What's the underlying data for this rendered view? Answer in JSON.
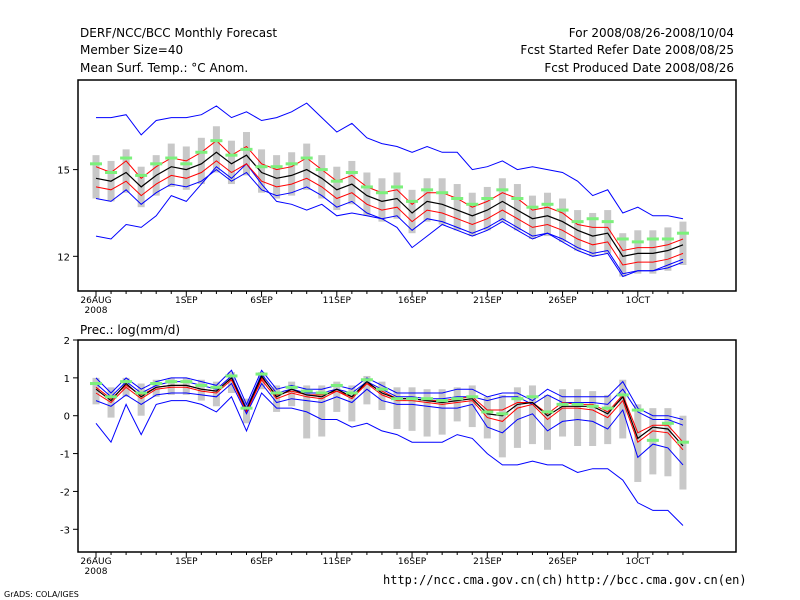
{
  "header": {
    "left_line1": "DERF/NCC/BCC Monthly Forecast",
    "left_line2": "Member Size=40",
    "right_line1": "For 2008/08/26-2008/10/04",
    "right_line2": "Fcst Started Refer Date 2008/08/25",
    "right_line3": "Fcst Produced Date 2008/08/26"
  },
  "footer": {
    "url_ncc": "http://ncc.cma.gov.cn(ch)",
    "url_bcc": "http://bcc.cma.gov.cn(en)",
    "grads": "GrADS: COLA/IGES"
  },
  "colors": {
    "spread": "#c8c8c8",
    "extreme": "#0000ff",
    "mean": "#000000",
    "band": "#ff0000",
    "observed": "#7cf07c"
  },
  "chart_data": [
    {
      "type": "line",
      "title": "Mean Surf. Temp.: °C Anom.",
      "x_labels": [
        "26AUG",
        "1SEP",
        "6SEP",
        "11SEP",
        "16SEP",
        "21SEP",
        "26SEP",
        "1OCT"
      ],
      "x_label_days": [
        0,
        6,
        11,
        16,
        21,
        26,
        31,
        36
      ],
      "x_year": "2008",
      "ylim": [
        10.8,
        18.1
      ],
      "yticks": [
        "15",
        "12"
      ],
      "ytick_values": [
        15,
        12
      ],
      "days": 40,
      "series": [
        {
          "name": "member max",
          "values": [
            12.7,
            12.6,
            13.1,
            13.0,
            13.4,
            14.1,
            13.9,
            14.5,
            15.1,
            14.7,
            15.2,
            14.5,
            13.9,
            13.8,
            13.6,
            13.8,
            13.4,
            13.5,
            13.4,
            13.3,
            13.0,
            12.3,
            12.7,
            13.1,
            12.9,
            12.7,
            12.9,
            13.2,
            12.9,
            12.6,
            12.8,
            12.5,
            12.2,
            12.0,
            12.1,
            11.3,
            11.5,
            11.5,
            11.7,
            11.9
          ]
        },
        {
          "name": "member upper",
          "values": [
            16.8,
            16.8,
            16.9,
            16.2,
            16.7,
            16.8,
            16.8,
            16.9,
            17.2,
            16.8,
            17.0,
            16.7,
            16.8,
            17.0,
            17.3,
            16.8,
            16.3,
            16.6,
            16.1,
            15.9,
            15.8,
            15.6,
            15.8,
            15.6,
            15.6,
            15.0,
            15.1,
            15.3,
            15.0,
            15.1,
            15.0,
            14.9,
            14.6,
            14.1,
            14.3,
            13.5,
            13.7,
            13.4,
            13.4,
            13.3
          ]
        },
        {
          "name": "band upper",
          "values": [
            15.1,
            14.9,
            15.3,
            14.7,
            15.1,
            15.4,
            15.3,
            15.6,
            16.0,
            15.5,
            15.8,
            15.2,
            15.0,
            15.1,
            15.4,
            15.0,
            14.6,
            14.8,
            14.4,
            14.2,
            14.3,
            13.8,
            14.2,
            14.2,
            14.0,
            13.7,
            13.9,
            14.2,
            14.0,
            13.6,
            13.7,
            13.5,
            13.1,
            13.0,
            13.0,
            12.2,
            12.3,
            12.3,
            12.4,
            12.6
          ]
        },
        {
          "name": "ensemble mean",
          "values": [
            14.7,
            14.6,
            14.9,
            14.4,
            14.8,
            15.1,
            15.0,
            15.2,
            15.6,
            15.2,
            15.5,
            14.9,
            14.7,
            14.8,
            15.0,
            14.7,
            14.3,
            14.5,
            14.1,
            13.9,
            14.0,
            13.5,
            13.9,
            13.8,
            13.6,
            13.4,
            13.6,
            13.9,
            13.6,
            13.3,
            13.4,
            13.2,
            12.9,
            12.7,
            12.8,
            12.0,
            12.1,
            12.1,
            12.2,
            12.4
          ]
        },
        {
          "name": "band lower",
          "values": [
            14.4,
            14.3,
            14.6,
            14.1,
            14.5,
            14.8,
            14.7,
            14.9,
            15.3,
            14.9,
            15.2,
            14.6,
            14.4,
            14.5,
            14.7,
            14.4,
            14.0,
            14.2,
            13.8,
            13.6,
            13.7,
            13.2,
            13.6,
            13.5,
            13.3,
            13.1,
            13.3,
            13.6,
            13.3,
            13.0,
            13.1,
            12.9,
            12.6,
            12.4,
            12.5,
            11.7,
            11.8,
            11.8,
            11.9,
            12.1
          ]
        },
        {
          "name": "member min",
          "values": [
            14.0,
            13.9,
            14.3,
            13.8,
            14.2,
            14.5,
            14.4,
            14.6,
            15.0,
            14.6,
            14.9,
            14.3,
            14.1,
            14.2,
            14.4,
            14.1,
            13.7,
            13.9,
            13.5,
            13.3,
            13.4,
            12.9,
            13.3,
            13.2,
            13.0,
            12.8,
            13.0,
            13.3,
            13.0,
            12.7,
            12.8,
            12.6,
            12.3,
            12.1,
            12.2,
            11.4,
            11.5,
            11.5,
            11.6,
            11.8
          ]
        },
        {
          "name": "observed",
          "values": [
            15.2,
            14.9,
            15.4,
            14.8,
            15.2,
            15.4,
            15.2,
            15.6,
            16.0,
            15.5,
            15.7,
            15.1,
            15.1,
            15.2,
            15.4,
            15.0,
            14.6,
            14.9,
            14.4,
            14.2,
            14.4,
            13.9,
            14.3,
            14.2,
            14.0,
            13.8,
            14.0,
            14.3,
            14.0,
            13.7,
            13.8,
            13.6,
            13.2,
            13.3,
            13.2,
            12.6,
            12.5,
            12.6,
            12.6,
            12.8
          ]
        }
      ],
      "spread": {
        "high": [
          15.5,
          15.3,
          15.7,
          15.1,
          15.5,
          15.9,
          15.8,
          16.1,
          16.5,
          16.0,
          16.3,
          15.7,
          15.5,
          15.6,
          15.9,
          15.5,
          15.1,
          15.3,
          14.9,
          14.7,
          14.9,
          14.3,
          14.7,
          14.7,
          14.5,
          14.2,
          14.4,
          14.7,
          14.5,
          14.1,
          14.2,
          14.0,
          13.6,
          13.5,
          13.6,
          12.8,
          12.9,
          12.9,
          13.0,
          13.2
        ],
        "low": [
          14.0,
          13.9,
          14.2,
          13.7,
          14.1,
          14.4,
          14.3,
          14.5,
          14.9,
          14.5,
          14.8,
          14.2,
          14.0,
          14.1,
          14.3,
          14.0,
          13.6,
          13.8,
          13.4,
          13.2,
          13.3,
          12.8,
          13.2,
          13.1,
          12.9,
          12.7,
          12.9,
          13.2,
          12.9,
          12.6,
          12.7,
          12.5,
          12.2,
          12.0,
          12.1,
          11.3,
          11.4,
          11.4,
          11.5,
          11.7
        ]
      }
    },
    {
      "type": "line",
      "title": "Prec.: log(mm/d)",
      "x_labels": [
        "26AUG",
        "1SEP",
        "6SEP",
        "11SEP",
        "16SEP",
        "21SEP",
        "26SEP",
        "1OCT"
      ],
      "x_label_days": [
        0,
        6,
        11,
        16,
        21,
        26,
        31,
        36
      ],
      "x_year": "2008",
      "ylim": [
        -3.6,
        2.0
      ],
      "yticks": [
        "2",
        "1",
        "0",
        "-1",
        "-2",
        "-3"
      ],
      "ytick_values": [
        2,
        1,
        0,
        -1,
        -2,
        -3
      ],
      "days": 40,
      "series": [
        {
          "name": "member max",
          "values": [
            1.0,
            0.6,
            1.0,
            0.7,
            0.9,
            1.0,
            1.0,
            0.9,
            0.8,
            1.2,
            0.3,
            1.2,
            0.7,
            0.8,
            0.7,
            0.7,
            0.8,
            0.7,
            1.0,
            0.8,
            0.6,
            0.6,
            0.6,
            0.6,
            0.7,
            0.7,
            0.5,
            0.6,
            0.6,
            0.4,
            0.7,
            0.5,
            0.5,
            0.5,
            0.5,
            0.9,
            0.2,
            0.0,
            0.0,
            -0.1
          ]
        },
        {
          "name": "member upper",
          "values": [
            0.85,
            0.5,
            0.9,
            0.6,
            0.8,
            0.9,
            0.9,
            0.8,
            0.7,
            1.05,
            0.2,
            1.1,
            0.6,
            0.7,
            0.6,
            0.6,
            0.7,
            0.6,
            0.9,
            0.7,
            0.5,
            0.5,
            0.45,
            0.45,
            0.5,
            0.5,
            0.4,
            0.5,
            0.5,
            0.3,
            0.55,
            0.35,
            0.35,
            0.35,
            0.3,
            0.7,
            0.1,
            -0.1,
            -0.1,
            -0.25
          ]
        },
        {
          "name": "band upper",
          "values": [
            0.75,
            0.45,
            0.8,
            0.55,
            0.75,
            0.8,
            0.8,
            0.7,
            0.65,
            1.0,
            0.15,
            1.0,
            0.55,
            0.65,
            0.55,
            0.55,
            0.65,
            0.5,
            0.85,
            0.65,
            0.45,
            0.45,
            0.4,
            0.4,
            0.45,
            0.5,
            0.15,
            0.15,
            0.35,
            0.35,
            0.05,
            0.35,
            0.3,
            0.3,
            0.1,
            0.55,
            -0.45,
            -0.25,
            -0.25,
            -0.7
          ]
        },
        {
          "name": "ensemble mean",
          "values": [
            0.7,
            0.4,
            0.85,
            0.5,
            0.75,
            0.8,
            0.8,
            0.7,
            0.65,
            1.0,
            0.15,
            1.05,
            0.5,
            0.7,
            0.55,
            0.5,
            0.7,
            0.5,
            0.9,
            0.6,
            0.45,
            0.45,
            0.4,
            0.35,
            0.4,
            0.45,
            0.05,
            0.0,
            0.3,
            0.35,
            0.0,
            0.25,
            0.25,
            0.25,
            0.05,
            0.5,
            -0.6,
            -0.3,
            -0.35,
            -0.8
          ]
        },
        {
          "name": "band lower",
          "values": [
            0.6,
            0.35,
            0.75,
            0.45,
            0.7,
            0.75,
            0.75,
            0.65,
            0.6,
            0.95,
            0.1,
            0.95,
            0.45,
            0.6,
            0.5,
            0.45,
            0.65,
            0.45,
            0.85,
            0.55,
            0.4,
            0.4,
            0.35,
            0.3,
            0.35,
            0.4,
            -0.05,
            -0.15,
            0.2,
            0.3,
            -0.1,
            0.2,
            0.2,
            0.15,
            -0.05,
            0.4,
            -0.7,
            -0.4,
            -0.45,
            -0.9
          ]
        },
        {
          "name": "member min",
          "values": [
            0.4,
            0.25,
            0.55,
            0.3,
            0.55,
            0.6,
            0.6,
            0.55,
            0.5,
            0.85,
            0.05,
            0.85,
            0.35,
            0.45,
            0.4,
            0.35,
            0.5,
            0.35,
            0.7,
            0.4,
            0.3,
            0.3,
            0.25,
            0.2,
            0.2,
            0.3,
            -0.3,
            -0.45,
            -0.1,
            0.05,
            -0.4,
            -0.15,
            -0.1,
            -0.15,
            -0.35,
            0.15,
            -1.1,
            -0.75,
            -0.85,
            -1.3
          ]
        },
        {
          "name": "observed",
          "values": [
            0.85,
            0.5,
            0.9,
            0.6,
            0.85,
            0.9,
            0.9,
            0.8,
            0.75,
            1.05,
            0.2,
            1.1,
            0.6,
            0.75,
            0.65,
            0.6,
            0.8,
            0.6,
            0.95,
            0.7,
            0.45,
            0.45,
            0.45,
            0.4,
            0.45,
            0.5,
            0.1,
            0.05,
            0.45,
            0.5,
            0.1,
            0.3,
            0.3,
            0.25,
            0.2,
            0.55,
            0.15,
            -0.65,
            -0.2,
            -0.7
          ]
        }
      ],
      "spread": {
        "high": [
          1.0,
          0.75,
          1.0,
          0.85,
          0.95,
          1.0,
          1.0,
          0.95,
          0.9,
          1.15,
          0.45,
          1.15,
          0.8,
          0.9,
          0.8,
          0.8,
          0.9,
          0.8,
          1.05,
          0.9,
          0.75,
          0.75,
          0.7,
          0.7,
          0.75,
          0.8,
          0.5,
          0.55,
          0.75,
          0.8,
          0.55,
          0.7,
          0.7,
          0.65,
          0.55,
          0.95,
          0.3,
          0.2,
          0.2,
          0.0
        ],
        "low": [
          0.3,
          -0.05,
          0.5,
          0.0,
          0.5,
          0.55,
          0.55,
          0.4,
          0.25,
          0.6,
          -0.2,
          0.7,
          0.1,
          0.25,
          -0.6,
          -0.55,
          0.1,
          -0.15,
          0.3,
          0.15,
          -0.35,
          -0.4,
          -0.55,
          -0.5,
          -0.15,
          -0.3,
          -0.6,
          -1.1,
          -0.85,
          -0.75,
          -0.9,
          -0.55,
          -0.8,
          -0.8,
          -0.75,
          -0.6,
          -1.75,
          -1.55,
          -1.6,
          -1.95
        ]
      },
      "member_min_series": [
        -0.2,
        -0.7,
        0.3,
        -0.5,
        0.3,
        0.4,
        0.4,
        0.3,
        0.1,
        0.5,
        -0.4,
        0.6,
        0.2,
        0.2,
        0.1,
        -0.1,
        -0.1,
        -0.3,
        -0.2,
        -0.4,
        -0.5,
        -0.7,
        -0.7,
        -0.7,
        -0.5,
        -0.6,
        -1.0,
        -1.3,
        -1.3,
        -1.2,
        -1.3,
        -1.3,
        -1.5,
        -1.4,
        -1.4,
        -1.7,
        -2.3,
        -2.5,
        -2.5,
        -2.9
      ]
    }
  ]
}
